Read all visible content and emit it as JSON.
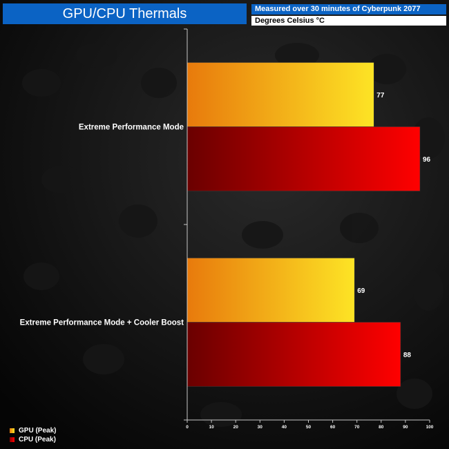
{
  "header": {
    "title": "GPU/CPU Thermals",
    "subtitle": "Measured over 30 minutes of Cyberpunk 2077",
    "unit": "Degrees Celsius °C"
  },
  "legend": {
    "items": [
      {
        "label": "GPU (Peak)",
        "color": "#f5a623"
      },
      {
        "label": "CPU (Peak)",
        "color": "#e00000"
      }
    ]
  },
  "chart_data": {
    "type": "bar",
    "orientation": "horizontal",
    "categories": [
      "Extreme Performance Mode",
      "Extreme Performance Mode + Cooler Boost"
    ],
    "series": [
      {
        "name": "GPU (Peak)",
        "values": [
          77,
          69
        ],
        "color": "#f5a623"
      },
      {
        "name": "CPU (Peak)",
        "values": [
          96,
          88
        ],
        "color": "#e00000"
      }
    ],
    "xlim": [
      0,
      100
    ],
    "xticks": [
      0,
      10,
      20,
      30,
      40,
      50,
      60,
      70,
      80,
      90,
      100
    ],
    "grid": false,
    "legend_position": "bottom-left"
  }
}
